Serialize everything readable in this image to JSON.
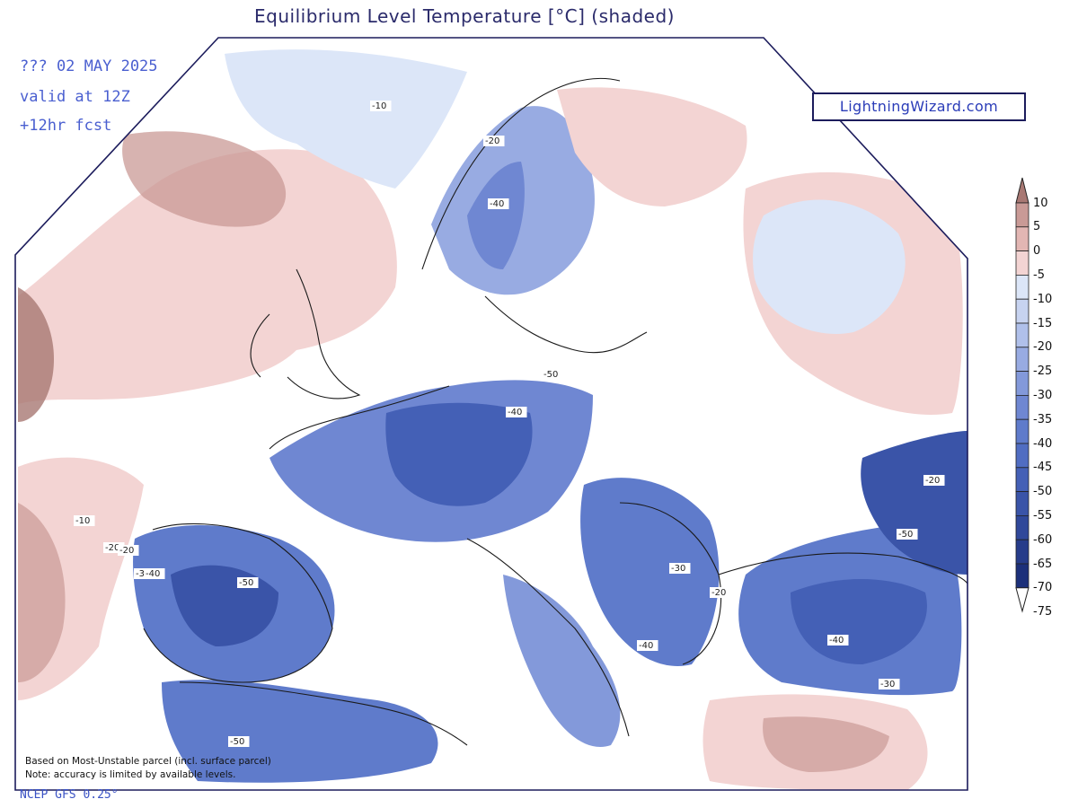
{
  "title": "Equilibrium Level Temperature [°C] (shaded)",
  "run_info": {
    "line1": "??? 02 MAY 2025",
    "line2": "valid at 12Z",
    "line3": "+12hr fcst"
  },
  "brand": "LightningWizard.com",
  "footnote": {
    "line1": "Based on Most-Unstable parcel (incl. surface parcel)",
    "line2": "Note: accuracy is limited by available levels."
  },
  "model": "NCEP GFS 0.25°",
  "colorbar": {
    "labels": [
      "10",
      "5",
      "0",
      "-5",
      "-10",
      "-15",
      "-20",
      "-25",
      "-30",
      "-35",
      "-40",
      "-45",
      "-50",
      "-55",
      "-60",
      "-65",
      "-70",
      "-75"
    ],
    "colors": [
      "#a87873",
      "#c99a96",
      "#e2b6b3",
      "#f3d4d3",
      "#dce6f8",
      "#c7d3f0",
      "#b0c0ea",
      "#98abe2",
      "#8399da",
      "#6f87d2",
      "#5f7bcb",
      "#506dc2",
      "#4460b6",
      "#3a54a8",
      "#30489a",
      "#263c8a",
      "#1c307a"
    ]
  },
  "contour_labels": [
    "-10",
    "-20",
    "-40",
    "-50",
    "-40",
    "-10",
    "-20",
    "-20",
    "-30",
    "-40",
    "-50",
    "-20",
    "-50",
    "-30",
    "-20",
    "-40",
    "-40",
    "-30",
    "-50"
  ],
  "map": {
    "ocean_color": "#ffffff",
    "warm_color": "#f3d4d3",
    "cold_color": "#506dc2"
  }
}
